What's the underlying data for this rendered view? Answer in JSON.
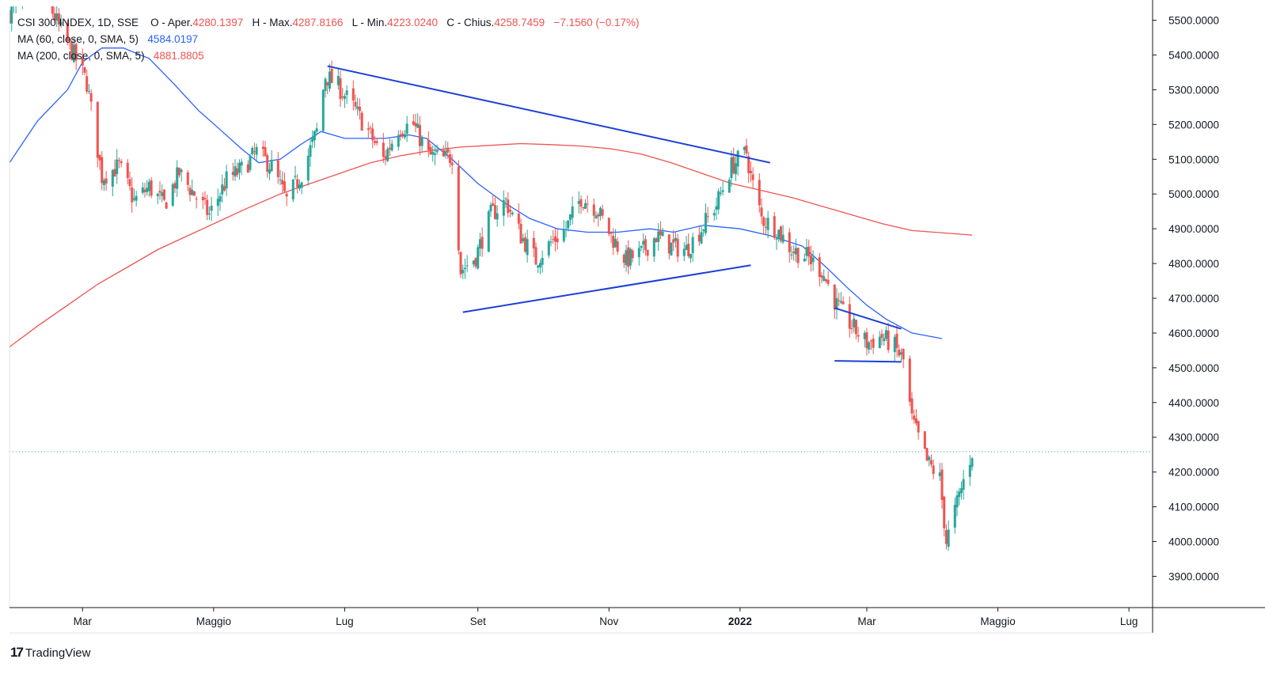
{
  "legend": {
    "symbol_line": "CSI 300 INDEX, 1D, SSE",
    "o_label": "O - Aper.",
    "o_value": "4280.1397",
    "h_label": "H - Max.",
    "h_value": "4287.8166",
    "l_label": "L - Min.",
    "l_value": "4223.0240",
    "c_label": "C - Chius.",
    "c_value": "4258.7459",
    "change": "−7.1560 (−0.17%)",
    "ma60_label": "MA (60, close, 0, SMA, 5)",
    "ma60_value": "4584.0197",
    "ma200_label": "MA (200, close, 0, SMA, 5)",
    "ma200_value": "4881.8805"
  },
  "brand": {
    "logo": "17",
    "name": "TradingView"
  },
  "colors": {
    "up": "#26a69a",
    "down": "#ef5350",
    "ma60": "#2962ff",
    "ma200": "#ef5350",
    "trend": "#1b3fd6"
  },
  "chart_data": {
    "type": "candlestick",
    "y_axis_labels": [
      "5500.0000",
      "5400.0000",
      "5300.0000",
      "5200.0000",
      "5100.0000",
      "5000.0000",
      "4900.0000",
      "4800.0000",
      "4700.0000",
      "4600.0000",
      "4500.0000",
      "4400.0000",
      "4300.0000",
      "4200.0000",
      "4100.0000",
      "4000.0000",
      "3900.0000"
    ],
    "ylim": [
      3810,
      5540
    ],
    "x_axis_labels": [
      {
        "label": "Mar",
        "date": "2021-03-01"
      },
      {
        "label": "Maggio",
        "date": "2021-05-01"
      },
      {
        "label": "Lug",
        "date": "2021-07-01"
      },
      {
        "label": "Set",
        "date": "2021-09-01"
      },
      {
        "label": "Nov",
        "date": "2021-11-01"
      },
      {
        "label": "2022",
        "date": "2022-01-01",
        "bold": true
      },
      {
        "label": "Mar",
        "date": "2022-03-01"
      },
      {
        "label": "Maggio",
        "date": "2022-05-01"
      },
      {
        "label": "Lug",
        "date": "2022-07-01"
      }
    ],
    "xlim": [
      "2021-01-26",
      "2022-07-12"
    ],
    "last_close": 4258.7459,
    "price_path": [
      [
        "2021-01-26",
        5520
      ],
      [
        "2021-02-10",
        5600
      ],
      [
        "2021-02-18",
        5480
      ],
      [
        "2021-02-25",
        5400
      ],
      [
        "2021-03-03",
        5320
      ],
      [
        "2021-03-10",
        5050
      ],
      [
        "2021-03-18",
        5080
      ],
      [
        "2021-03-25",
        4980
      ],
      [
        "2021-04-01",
        5020
      ],
      [
        "2021-04-08",
        4970
      ],
      [
        "2021-04-15",
        5060
      ],
      [
        "2021-04-22",
        5000
      ],
      [
        "2021-04-29",
        4940
      ],
      [
        "2021-05-07",
        5040
      ],
      [
        "2021-05-14",
        5070
      ],
      [
        "2021-05-21",
        5120
      ],
      [
        "2021-05-28",
        5080
      ],
      [
        "2021-06-04",
        4980
      ],
      [
        "2021-06-11",
        5060
      ],
      [
        "2021-06-18",
        5180
      ],
      [
        "2021-06-22",
        5340
      ],
      [
        "2021-06-28",
        5310
      ],
      [
        "2021-07-05",
        5250
      ],
      [
        "2021-07-12",
        5180
      ],
      [
        "2021-07-19",
        5100
      ],
      [
        "2021-07-26",
        5190
      ],
      [
        "2021-08-02",
        5200
      ],
      [
        "2021-08-09",
        5110
      ],
      [
        "2021-08-16",
        5100
      ],
      [
        "2021-08-20",
        5110
      ],
      [
        "2021-08-24",
        4780
      ],
      [
        "2021-08-31",
        4820
      ],
      [
        "2021-09-07",
        4940
      ],
      [
        "2021-09-14",
        4980
      ],
      [
        "2021-09-21",
        4880
      ],
      [
        "2021-09-28",
        4810
      ],
      [
        "2021-10-05",
        4860
      ],
      [
        "2021-10-12",
        4900
      ],
      [
        "2021-10-19",
        4990
      ],
      [
        "2021-10-26",
        4960
      ],
      [
        "2021-11-02",
        4880
      ],
      [
        "2021-11-09",
        4810
      ],
      [
        "2021-11-16",
        4830
      ],
      [
        "2021-11-23",
        4880
      ],
      [
        "2021-11-30",
        4850
      ],
      [
        "2021-12-07",
        4840
      ],
      [
        "2021-12-14",
        4900
      ],
      [
        "2021-12-21",
        4970
      ],
      [
        "2021-12-28",
        5080
      ],
      [
        "2022-01-04",
        5120
      ],
      [
        "2022-01-06",
        5050
      ],
      [
        "2022-01-11",
        4930
      ],
      [
        "2022-01-18",
        4900
      ],
      [
        "2022-01-25",
        4840
      ],
      [
        "2022-02-01",
        4820
      ],
      [
        "2022-02-08",
        4780
      ],
      [
        "2022-02-15",
        4680
      ],
      [
        "2022-02-22",
        4620
      ],
      [
        "2022-03-01",
        4570
      ],
      [
        "2022-03-08",
        4590
      ],
      [
        "2022-03-14",
        4560
      ],
      [
        "2022-03-18",
        4520
      ],
      [
        "2022-03-22",
        4350
      ],
      [
        "2022-03-29",
        4230
      ],
      [
        "2022-04-04",
        4180
      ],
      [
        "2022-04-07",
        4000
      ],
      [
        "2022-04-12",
        4110
      ],
      [
        "2022-04-19",
        4259
      ]
    ],
    "series": [
      {
        "name": "MA (60, close, 0, SMA, 5)",
        "points": [
          [
            "2021-01-26",
            5090
          ],
          [
            "2021-02-08",
            5210
          ],
          [
            "2021-02-22",
            5300
          ],
          [
            "2021-03-01",
            5380
          ],
          [
            "2021-03-10",
            5420
          ],
          [
            "2021-03-20",
            5420
          ],
          [
            "2021-04-01",
            5390
          ],
          [
            "2021-04-12",
            5320
          ],
          [
            "2021-04-24",
            5240
          ],
          [
            "2021-05-05",
            5180
          ],
          [
            "2021-05-14",
            5130
          ],
          [
            "2021-05-22",
            5090
          ],
          [
            "2021-06-01",
            5100
          ],
          [
            "2021-06-10",
            5140
          ],
          [
            "2021-06-20",
            5180
          ],
          [
            "2021-07-01",
            5160
          ],
          [
            "2021-07-12",
            5160
          ],
          [
            "2021-07-20",
            5160
          ],
          [
            "2021-07-31",
            5170
          ],
          [
            "2021-08-08",
            5160
          ],
          [
            "2021-08-20",
            5100
          ],
          [
            "2021-09-01",
            5030
          ],
          [
            "2021-09-12",
            4980
          ],
          [
            "2021-09-25",
            4930
          ],
          [
            "2021-10-08",
            4900
          ],
          [
            "2021-10-22",
            4890
          ],
          [
            "2021-11-05",
            4890
          ],
          [
            "2021-11-20",
            4900
          ],
          [
            "2021-12-01",
            4890
          ],
          [
            "2021-12-15",
            4910
          ],
          [
            "2022-01-01",
            4900
          ],
          [
            "2022-01-15",
            4880
          ],
          [
            "2022-01-30",
            4850
          ],
          [
            "2022-02-10",
            4790
          ],
          [
            "2022-02-20",
            4730
          ],
          [
            "2022-03-01",
            4680
          ],
          [
            "2022-03-10",
            4640
          ],
          [
            "2022-03-22",
            4600
          ],
          [
            "2022-04-05",
            4584
          ]
        ]
      },
      {
        "name": "MA (200, close, 0, SMA, 5)",
        "points": [
          [
            "2021-01-26",
            4560
          ],
          [
            "2021-02-08",
            4620
          ],
          [
            "2021-02-22",
            4680
          ],
          [
            "2021-03-08",
            4740
          ],
          [
            "2021-03-22",
            4790
          ],
          [
            "2021-04-05",
            4840
          ],
          [
            "2021-04-19",
            4880
          ],
          [
            "2021-05-03",
            4920
          ],
          [
            "2021-05-17",
            4960
          ],
          [
            "2021-06-01",
            5000
          ],
          [
            "2021-06-15",
            5030
          ],
          [
            "2021-06-29",
            5060
          ],
          [
            "2021-07-13",
            5090
          ],
          [
            "2021-07-27",
            5110
          ],
          [
            "2021-08-10",
            5125
          ],
          [
            "2021-08-24",
            5135
          ],
          [
            "2021-09-07",
            5140
          ],
          [
            "2021-09-21",
            5145
          ],
          [
            "2021-10-05",
            5142
          ],
          [
            "2021-10-19",
            5138
          ],
          [
            "2021-11-02",
            5130
          ],
          [
            "2021-11-16",
            5115
          ],
          [
            "2021-11-30",
            5090
          ],
          [
            "2021-12-14",
            5060
          ],
          [
            "2021-12-28",
            5030
          ],
          [
            "2022-01-11",
            5010
          ],
          [
            "2022-01-25",
            4990
          ],
          [
            "2022-02-08",
            4965
          ],
          [
            "2022-02-22",
            4940
          ],
          [
            "2022-03-08",
            4915
          ],
          [
            "2022-03-22",
            4895
          ],
          [
            "2022-04-19",
            4882
          ]
        ]
      }
    ],
    "trendlines": [
      {
        "from": [
          "2021-06-23",
          5368
        ],
        "to": [
          "2022-01-15",
          5090
        ]
      },
      {
        "from": [
          "2021-08-25",
          4660
        ],
        "to": [
          "2022-01-06",
          4795
        ]
      },
      {
        "from": [
          "2022-02-14",
          4672
        ],
        "to": [
          "2022-03-17",
          4612
        ]
      },
      {
        "from": [
          "2022-02-14",
          4520
        ],
        "to": [
          "2022-03-17",
          4517
        ]
      }
    ]
  }
}
